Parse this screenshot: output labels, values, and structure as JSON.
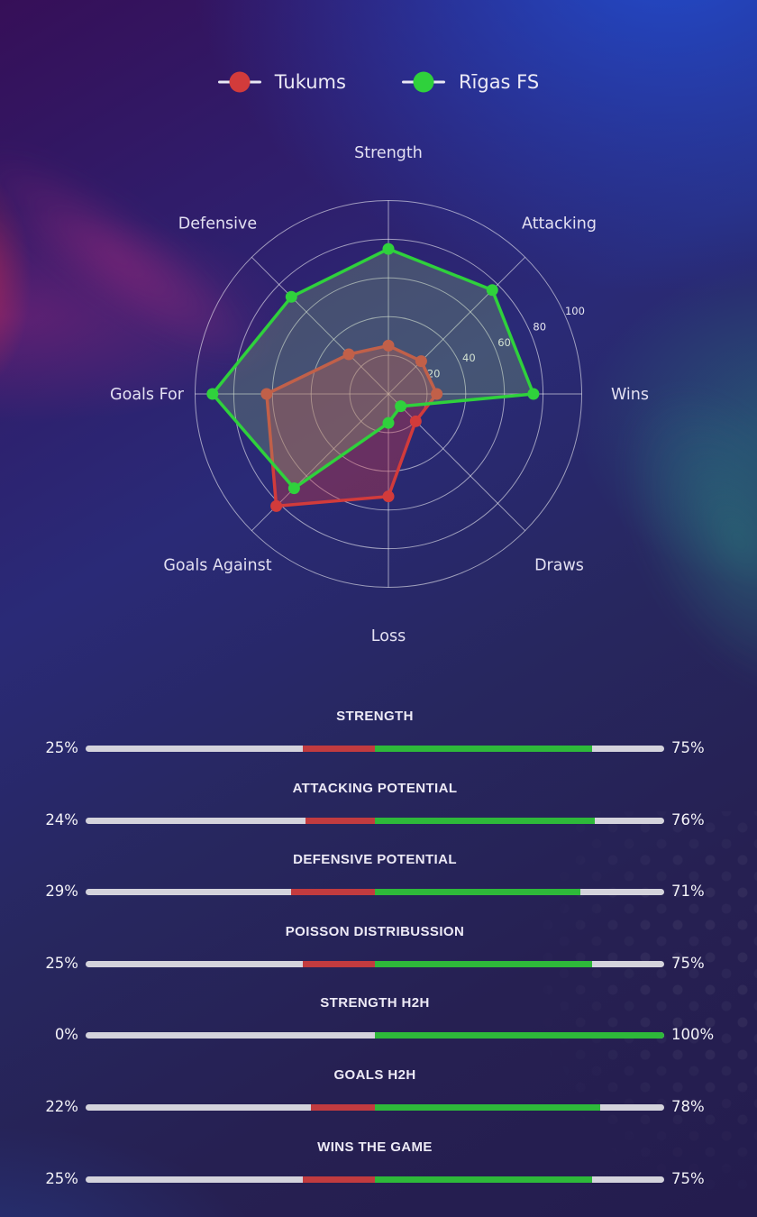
{
  "legend": {
    "teams": [
      {
        "name": "Tukums",
        "color": "#d23b3b"
      },
      {
        "name": "Rīgas FS",
        "color": "#2fd13c"
      }
    ]
  },
  "chart_data": {
    "type": "radar",
    "title": "",
    "categories": [
      "Strength",
      "Attacking",
      "Wins",
      "Draws",
      "Loss",
      "Goals Against",
      "Goals For",
      "Defensive"
    ],
    "series": [
      {
        "name": "Tukums",
        "color": "#d23b3b",
        "fill": "rgba(205,58,68,0.38)",
        "values": [
          25,
          24,
          25,
          20,
          53,
          82,
          63,
          29
        ]
      },
      {
        "name": "Rīgas FS",
        "color": "#2fd13c",
        "fill": "rgba(145,205,115,0.26)",
        "values": [
          75,
          76,
          75,
          9,
          15,
          69,
          91,
          71
        ]
      }
    ],
    "radial_ticks": [
      20,
      40,
      60,
      80,
      100
    ],
    "rmax": 100,
    "grid": "circular rings with 8 spokes, white semi-transparent",
    "tick_label_color": "#e8e8f2",
    "axis_label_color": "#e3e0f2"
  },
  "comparison_bars": {
    "track_color": "#d4d3dc",
    "left_color": "#c23b3f",
    "right_color": "#2eb93a",
    "rows": [
      {
        "title": "STRENGTH",
        "left_label": "25%",
        "right_label": "75%",
        "left_value": 25,
        "right_value": 75
      },
      {
        "title": "ATTACKING POTENTIAL",
        "left_label": "24%",
        "right_label": "76%",
        "left_value": 24,
        "right_value": 76
      },
      {
        "title": "DEFENSIVE POTENTIAL",
        "left_label": "29%",
        "right_label": "71%",
        "left_value": 29,
        "right_value": 71
      },
      {
        "title": "POISSON DISTRIBUSSION",
        "left_label": "25%",
        "right_label": "75%",
        "left_value": 25,
        "right_value": 75
      },
      {
        "title": "STRENGTH H2H",
        "left_label": "0%",
        "right_label": "100%",
        "left_value": 0,
        "right_value": 100
      },
      {
        "title": "GOALS H2H",
        "left_label": "22%",
        "right_label": "78%",
        "left_value": 22,
        "right_value": 78
      },
      {
        "title": "WINS THE GAME",
        "left_label": "25%",
        "right_label": "75%",
        "left_value": 25,
        "right_value": 75
      }
    ]
  }
}
